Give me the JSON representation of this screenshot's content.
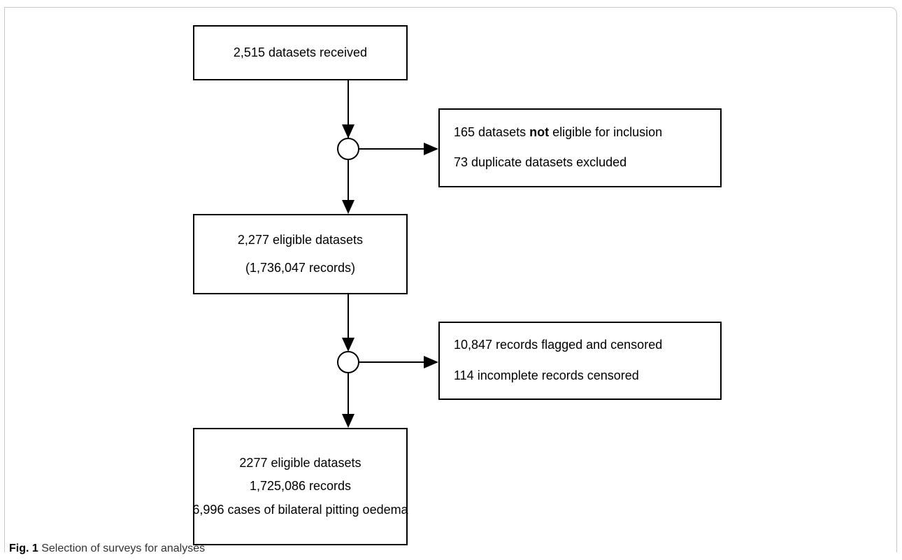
{
  "flowchart": {
    "received": "2,515 datasets received",
    "exclusion1": {
      "line1_prefix": "165 datasets",
      "line1_bold": "not",
      "line1_suffix": "eligible for inclusion",
      "line2": "73 duplicate datasets excluded"
    },
    "eligible": {
      "line1": "2,277 eligible datasets",
      "line2": "(1,736,047 records)"
    },
    "exclusion2": {
      "line1": "10,847 records flagged and censored",
      "line2": "114 incomplete records censored"
    },
    "final": {
      "line1": "2277 eligible datasets",
      "line2": "1,725,086 records",
      "line3": "6,996 cases of bilateral pitting oedema"
    }
  },
  "caption": {
    "label": "Fig. 1",
    "text": "Selection of surveys for analyses"
  }
}
